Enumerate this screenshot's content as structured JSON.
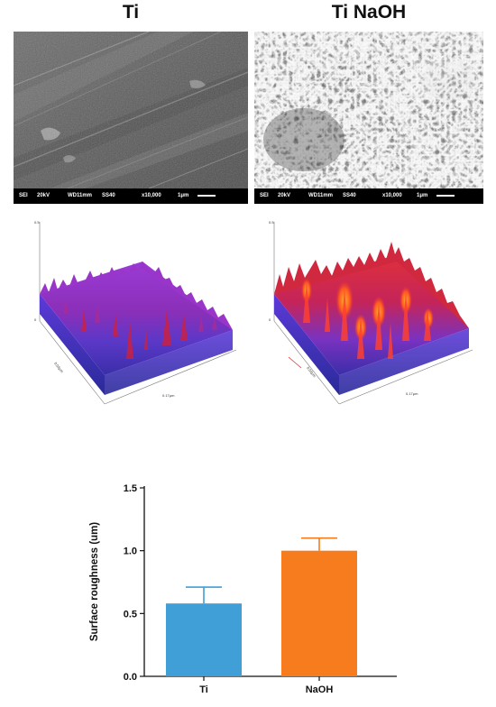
{
  "panels": {
    "left_title": "Ti",
    "right_title": "Ti NaOH"
  },
  "sem_info": {
    "left": {
      "mode": "SEI",
      "voltage": "20kV",
      "wd": "WD11mm",
      "ss": "SS40",
      "mag": "x10,000",
      "scale": "1μm"
    },
    "right": {
      "mode": "SEI",
      "voltage": "20kV",
      "wd": "WD11mm",
      "ss": "SS40",
      "mag": "x10,000",
      "scale": "1μm"
    }
  },
  "topo": {
    "left": {
      "z_max": "0.5",
      "z_min": "0",
      "x_label": "0.17μm",
      "y_label": "0.02μm"
    },
    "right": {
      "z_max": "0.5",
      "z_min": "0",
      "x_label": "0.17μm",
      "y_label": "0.02μm"
    }
  },
  "colors": {
    "bar_ti": "#3f9fd6",
    "bar_naoh": "#f77c1d"
  },
  "chart_data": {
    "type": "bar",
    "categories": [
      "Ti",
      "NaOH"
    ],
    "values": [
      0.58,
      1.0
    ],
    "errors": [
      0.13,
      0.1
    ],
    "ylabel": "Surface roughness (um)",
    "xlabel": "",
    "ylim": [
      0,
      1.5
    ],
    "yticks": [
      "0.0",
      "0.5",
      "1.0",
      "1.5"
    ],
    "grid": false
  }
}
